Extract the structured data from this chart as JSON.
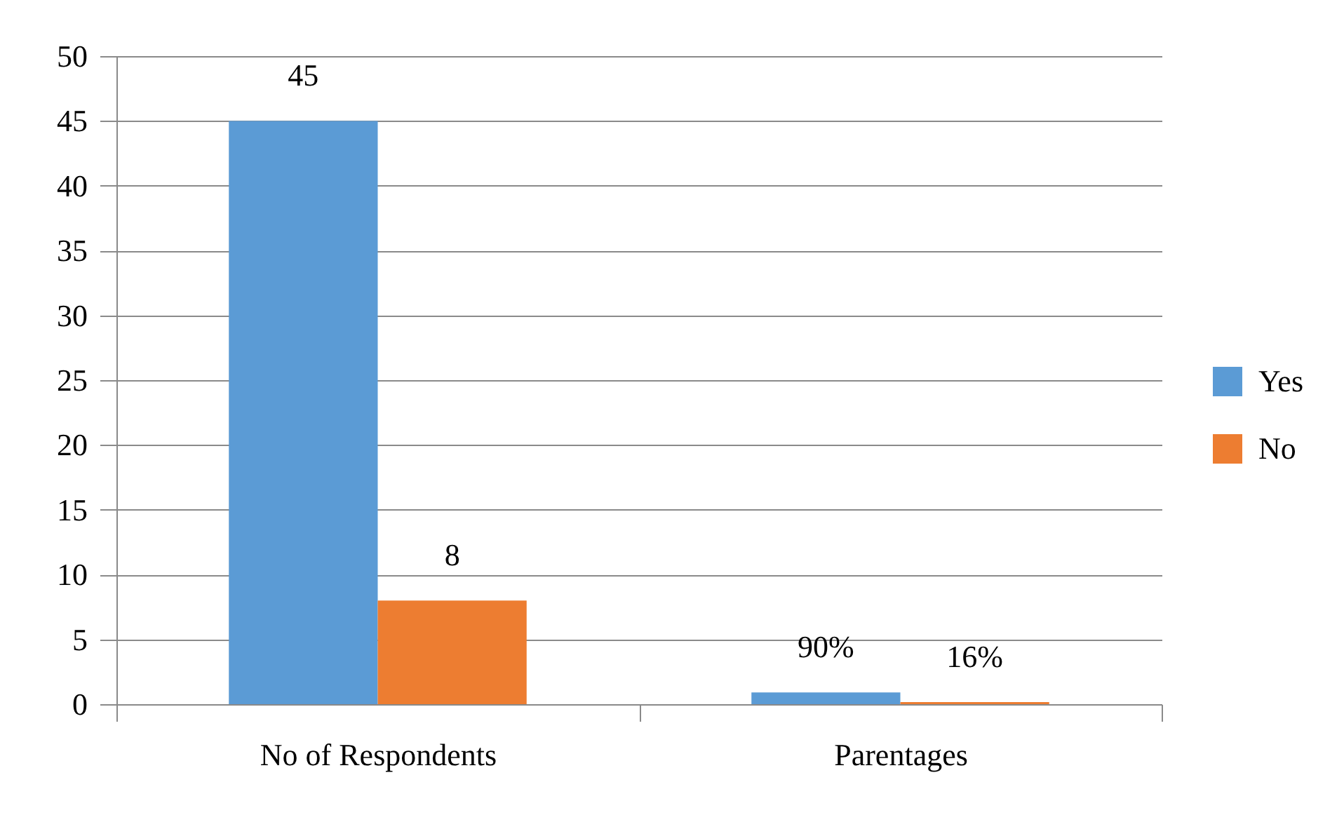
{
  "chart_data": {
    "type": "bar",
    "categories": [
      "No of Respondents",
      "Parentages"
    ],
    "series": [
      {
        "name": "Yes",
        "color": "#5b9bd5",
        "values": [
          45,
          0.9
        ],
        "value_labels": [
          "45",
          "90%"
        ]
      },
      {
        "name": "No",
        "color": "#ed7d31",
        "values": [
          8,
          0.16
        ],
        "value_labels": [
          "8",
          "16%"
        ]
      }
    ],
    "ylim": [
      0,
      50
    ],
    "yticks": [
      0,
      5,
      10,
      15,
      20,
      25,
      30,
      35,
      40,
      45,
      50
    ],
    "grid": "y",
    "legend": "right"
  }
}
